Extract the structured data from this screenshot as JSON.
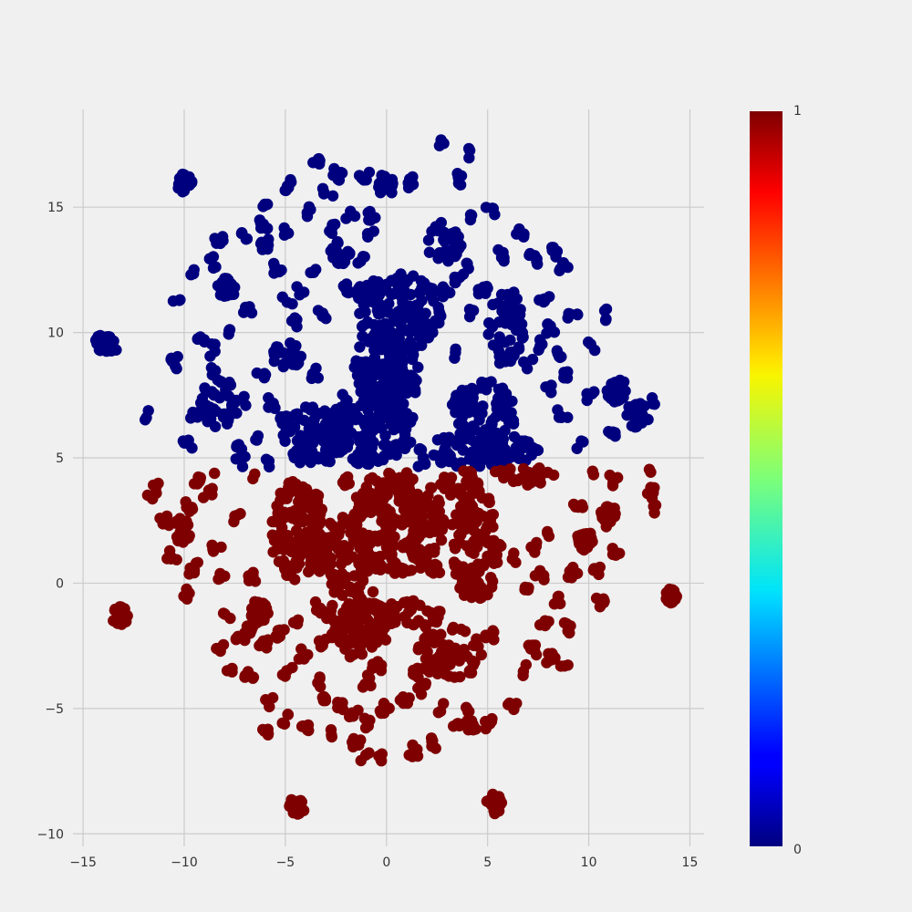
{
  "chart_data": {
    "type": "scatter",
    "title": "",
    "xlabel": "",
    "ylabel": "",
    "xlim": [
      -15.5,
      15.7
    ],
    "ylim": [
      -10.5,
      18.9
    ],
    "xticks": [
      -15,
      -10,
      -5,
      0,
      5,
      10,
      15
    ],
    "yticks": [
      -10,
      -5,
      0,
      5,
      10,
      15
    ],
    "xtick_labels": [
      "−15",
      "−10",
      "−5",
      "0",
      "5",
      "10",
      "15"
    ],
    "ytick_labels": [
      "−10",
      "−5",
      "0",
      "5",
      "10",
      "15"
    ],
    "grid": true,
    "colormap": "jet",
    "colorbar": {
      "min": 0,
      "max": 1,
      "min_label": "0",
      "max_label": "1"
    },
    "class_colors": {
      "0": "#00007f",
      "1": "#7f0000"
    },
    "split_y": 4.6,
    "series": [
      {
        "class": 0,
        "blobs": [
          {
            "cx": 0.5,
            "cy": 10.8,
            "rx": 2.2,
            "ry": 1.6
          },
          {
            "cx": 0.0,
            "cy": 8.6,
            "rx": 1.7,
            "ry": 1.5
          },
          {
            "cx": -0.8,
            "cy": 6.3,
            "rx": 2.2,
            "ry": 1.6
          },
          {
            "cx": -3.6,
            "cy": 6.0,
            "rx": 1.9,
            "ry": 1.3
          },
          {
            "cx": 4.8,
            "cy": 6.8,
            "rx": 1.6,
            "ry": 1.3
          },
          {
            "cx": 4.5,
            "cy": 5.3,
            "rx": 3.0,
            "ry": 0.7
          },
          {
            "cx": 2.8,
            "cy": 13.6,
            "rx": 0.9,
            "ry": 0.8
          },
          {
            "cx": 5.9,
            "cy": 10.2,
            "rx": 0.9,
            "ry": 1.6
          },
          {
            "cx": -8.2,
            "cy": 7.2,
            "rx": 1.0,
            "ry": 1.0
          },
          {
            "cx": -4.9,
            "cy": 9.1,
            "rx": 0.8,
            "ry": 0.5
          },
          {
            "cx": -10.0,
            "cy": 16.0,
            "rx": 0.4,
            "ry": 0.4
          },
          {
            "cx": -14.0,
            "cy": 9.6,
            "rx": 0.4,
            "ry": 0.4
          },
          {
            "cx": -7.9,
            "cy": 11.8,
            "rx": 0.5,
            "ry": 0.4
          },
          {
            "cx": -2.3,
            "cy": 13.2,
            "rx": 0.5,
            "ry": 0.5
          },
          {
            "cx": 12.4,
            "cy": 6.7,
            "rx": 0.6,
            "ry": 0.5
          },
          {
            "cx": 11.4,
            "cy": 7.7,
            "rx": 0.5,
            "ry": 0.5
          },
          {
            "cx": 0.0,
            "cy": 15.9,
            "rx": 0.4,
            "ry": 0.5
          }
        ],
        "specks": [
          [
            -13.4,
            9.5
          ],
          [
            -11.8,
            6.7
          ],
          [
            -10.5,
            8.8
          ],
          [
            -10.3,
            11.3
          ],
          [
            -9.7,
            12.3
          ],
          [
            -8.6,
            12.8
          ],
          [
            -8.3,
            13.6
          ],
          [
            -7.6,
            10.0
          ],
          [
            -6.9,
            10.8
          ],
          [
            -6.0,
            13.5
          ],
          [
            -5.4,
            12.6
          ],
          [
            -4.9,
            11.3
          ],
          [
            -4.5,
            10.4
          ],
          [
            -4.2,
            11.7
          ],
          [
            -3.5,
            12.5
          ],
          [
            -3.2,
            10.7
          ],
          [
            -2.7,
            14.2
          ],
          [
            -1.8,
            14.7
          ],
          [
            -1.2,
            13.0
          ],
          [
            -0.8,
            14.6
          ],
          [
            -1.1,
            16.3
          ],
          [
            -3.4,
            16.9
          ],
          [
            -4.9,
            15.9
          ],
          [
            -2.9,
            15.6
          ],
          [
            -5.1,
            14.1
          ],
          [
            -6.1,
            14.3
          ],
          [
            -7.0,
            13.8
          ],
          [
            -6.1,
            15.0
          ],
          [
            -4.0,
            14.8
          ],
          [
            -2.4,
            16.3
          ],
          [
            1.1,
            16.0
          ],
          [
            2.6,
            17.6
          ],
          [
            3.9,
            17.2
          ],
          [
            3.6,
            16.1
          ],
          [
            4.2,
            14.5
          ],
          [
            5.1,
            14.9
          ],
          [
            5.6,
            13.1
          ],
          [
            6.6,
            13.9
          ],
          [
            7.3,
            12.9
          ],
          [
            8.3,
            13.2
          ],
          [
            8.8,
            12.7
          ],
          [
            7.8,
            11.4
          ],
          [
            8.1,
            10.2
          ],
          [
            7.6,
            9.5
          ],
          [
            7.0,
            8.8
          ],
          [
            8.5,
            9.1
          ],
          [
            9.2,
            10.8
          ],
          [
            10.9,
            10.7
          ],
          [
            10.1,
            9.5
          ],
          [
            9.0,
            8.3
          ],
          [
            8.1,
            7.7
          ],
          [
            8.7,
            6.7
          ],
          [
            9.6,
            5.6
          ],
          [
            10.1,
            7.5
          ],
          [
            11.2,
            5.9
          ],
          [
            13.1,
            7.3
          ],
          [
            3.4,
            9.2
          ],
          [
            4.2,
            10.7
          ],
          [
            4.8,
            11.6
          ],
          [
            4.1,
            12.7
          ],
          [
            -9.8,
            5.5
          ],
          [
            -9.5,
            6.6
          ],
          [
            -7.2,
            7.3
          ],
          [
            -6.2,
            8.4
          ],
          [
            -5.6,
            7.2
          ],
          [
            -6.5,
            5.8
          ],
          [
            -7.2,
            5.3
          ],
          [
            -8.7,
            9.3
          ],
          [
            -1.1,
            8.2
          ],
          [
            -3.5,
            8.4
          ],
          [
            -1.3,
            11.6
          ],
          [
            1.4,
            7.8
          ],
          [
            2.2,
            11.7
          ],
          [
            2.9,
            11.6
          ],
          [
            3.6,
            12.1
          ],
          [
            -7.2,
            4.8
          ],
          [
            -5.7,
            4.7
          ],
          [
            -1.4,
            4.7
          ],
          [
            1.7,
            4.8
          ],
          [
            3.0,
            5.2
          ],
          [
            -8.6,
            8.5
          ],
          [
            -9.1,
            9.7
          ],
          [
            -0.7,
            14.0
          ],
          [
            -2.1,
            11.7
          ],
          [
            5.2,
            5.0
          ]
        ]
      },
      {
        "class": 1,
        "blobs": [
          {
            "cx": 0.5,
            "cy": 2.4,
            "rx": 2.4,
            "ry": 2.1
          },
          {
            "cx": -2.1,
            "cy": 1.1,
            "rx": 1.4,
            "ry": 1.6
          },
          {
            "cx": -4.4,
            "cy": 2.1,
            "rx": 1.4,
            "ry": 2.0
          },
          {
            "cx": 4.4,
            "cy": 1.5,
            "rx": 1.3,
            "ry": 2.2
          },
          {
            "cx": -1.4,
            "cy": -1.6,
            "rx": 1.6,
            "ry": 1.5
          },
          {
            "cx": 3.1,
            "cy": -2.8,
            "rx": 1.6,
            "ry": 1.1
          },
          {
            "cx": 1.2,
            "cy": -1.3,
            "rx": 1.6,
            "ry": 0.6
          },
          {
            "cx": 3.7,
            "cy": 4.0,
            "rx": 1.2,
            "ry": 0.6
          },
          {
            "cx": -13.2,
            "cy": -1.3,
            "rx": 0.4,
            "ry": 0.4
          },
          {
            "cx": -10.1,
            "cy": 2.1,
            "rx": 0.4,
            "ry": 0.5
          },
          {
            "cx": -4.4,
            "cy": -8.9,
            "rx": 0.4,
            "ry": 0.4
          },
          {
            "cx": 5.3,
            "cy": -8.8,
            "rx": 0.4,
            "ry": 0.4
          },
          {
            "cx": 14.1,
            "cy": -0.5,
            "rx": 0.3,
            "ry": 0.3
          },
          {
            "cx": -6.3,
            "cy": -1.1,
            "rx": 0.5,
            "ry": 0.5
          },
          {
            "cx": 6.8,
            "cy": 4.3,
            "rx": 1.7,
            "ry": 0.4
          },
          {
            "cx": 11.0,
            "cy": 2.7,
            "rx": 0.4,
            "ry": 0.5
          },
          {
            "cx": 9.8,
            "cy": 1.7,
            "rx": 0.4,
            "ry": 0.4
          }
        ],
        "specks": [
          [
            -11.6,
            3.4
          ],
          [
            -11.0,
            2.5
          ],
          [
            -9.8,
            3.0
          ],
          [
            -9.5,
            0.6
          ],
          [
            -8.8,
            3.6
          ],
          [
            -8.4,
            1.5
          ],
          [
            -8.1,
            0.3
          ],
          [
            -7.9,
            -1.4
          ],
          [
            -8.2,
            -2.6
          ],
          [
            -7.7,
            -3.6
          ],
          [
            -7.2,
            -2.3
          ],
          [
            -6.8,
            -3.7
          ],
          [
            -6.1,
            -2.4
          ],
          [
            -5.3,
            -2.0
          ],
          [
            -4.9,
            -3.5
          ],
          [
            -4.1,
            -2.8
          ],
          [
            -3.5,
            -3.9
          ],
          [
            -3.0,
            -4.6
          ],
          [
            -2.3,
            -4.9
          ],
          [
            -1.6,
            -5.2
          ],
          [
            -0.9,
            -5.6
          ],
          [
            -0.1,
            -5.0
          ],
          [
            0.9,
            -4.6
          ],
          [
            1.7,
            -4.2
          ],
          [
            2.6,
            -5.0
          ],
          [
            3.5,
            -5.5
          ],
          [
            4.2,
            -5.7
          ],
          [
            5.0,
            -5.6
          ],
          [
            6.2,
            -4.8
          ],
          [
            6.7,
            -3.5
          ],
          [
            7.2,
            -2.7
          ],
          [
            7.8,
            -1.7
          ],
          [
            8.4,
            -0.7
          ],
          [
            9.2,
            0.4
          ],
          [
            10.4,
            0.4
          ],
          [
            10.6,
            -0.8
          ],
          [
            9.0,
            -1.8
          ],
          [
            8.8,
            -3.3
          ],
          [
            8.1,
            -3.0
          ],
          [
            -5.1,
            -5.4
          ],
          [
            -5.8,
            -4.8
          ],
          [
            -5.9,
            -6.0
          ],
          [
            -4.1,
            -5.8
          ],
          [
            -2.6,
            -6.0
          ],
          [
            -1.5,
            -6.4
          ],
          [
            -1.1,
            -6.9
          ],
          [
            -0.3,
            -7.0
          ],
          [
            1.3,
            -6.7
          ],
          [
            2.2,
            -6.4
          ],
          [
            4.0,
            -5.2
          ],
          [
            -11.3,
            4.0
          ],
          [
            -10.6,
            1.1
          ],
          [
            -9.9,
            -0.4
          ],
          [
            -7.3,
            2.6
          ],
          [
            -6.6,
            0.2
          ],
          [
            -6.8,
            -1.8
          ],
          [
            -4.6,
            -1.4
          ],
          [
            -3.1,
            -2.4
          ],
          [
            -1.0,
            -3.9
          ],
          [
            1.5,
            -3.6
          ],
          [
            -9.3,
            4.2
          ],
          [
            -8.3,
            4.5
          ],
          [
            -6.7,
            4.4
          ],
          [
            6.4,
            1.0
          ],
          [
            6.9,
            -0.4
          ],
          [
            7.6,
            0.3
          ],
          [
            8.2,
            2.1
          ],
          [
            9.5,
            3.1
          ],
          [
            10.4,
            4.5
          ],
          [
            11.2,
            4.1
          ],
          [
            12.9,
            4.6
          ],
          [
            13.1,
            3.6
          ],
          [
            13.4,
            2.9
          ],
          [
            11.4,
            1.3
          ],
          [
            -3.3,
            -1.0
          ],
          [
            -4.6,
            3.7
          ],
          [
            2.4,
            0.6
          ],
          [
            -0.5,
            -3.3
          ],
          [
            5.1,
            -2.1
          ],
          [
            7.3,
            1.4
          ],
          [
            -5.3,
            0.8
          ],
          [
            -3.6,
            3.4
          ],
          [
            2.9,
            3.9
          ],
          [
            -2.0,
            4.1
          ],
          [
            0.5,
            4.0
          ]
        ]
      }
    ]
  }
}
